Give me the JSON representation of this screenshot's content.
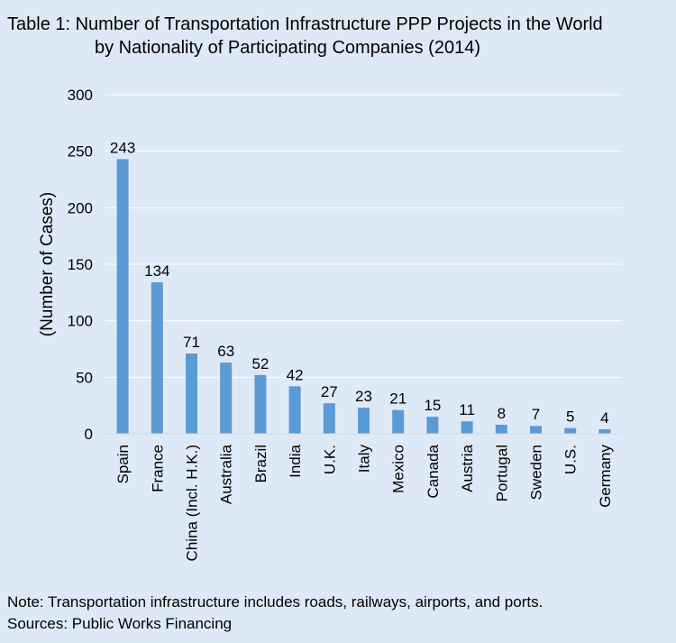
{
  "title_line1": "Table 1: Number of Transportation Infrastructure PPP Projects in the World",
  "title_line2": "by Nationality of Participating Companies (2014)",
  "note": "Note: Transportation infrastructure includes roads, railways, airports, and ports.",
  "source": "Sources: Public Works Financing",
  "colors": {
    "background": "#dde9f6",
    "bar": "#5b9bd5",
    "gridline": "#ffffff",
    "text": "#000000"
  },
  "chart_data": {
    "type": "bar",
    "title": "",
    "xlabel": "",
    "ylabel": "(Number of Cases)",
    "ylim": [
      0,
      300
    ],
    "yticks": [
      0,
      50,
      100,
      150,
      200,
      250,
      300
    ],
    "grid": true,
    "categories": [
      "Spain",
      "France",
      "China (Incl. H.K.)",
      "Australia",
      "Brazil",
      "India",
      "U.K.",
      "Italy",
      "Mexico",
      "Canada",
      "Austria",
      "Portugal",
      "Sweden",
      "U.S.",
      "Germany"
    ],
    "values": [
      243,
      134,
      71,
      63,
      52,
      42,
      27,
      23,
      21,
      15,
      11,
      8,
      7,
      5,
      4
    ],
    "data_labels": [
      "243",
      "134",
      "71",
      "63",
      "52",
      "42",
      "27",
      "23",
      "21",
      "15",
      "11",
      "8",
      "7",
      "5",
      "4"
    ]
  }
}
